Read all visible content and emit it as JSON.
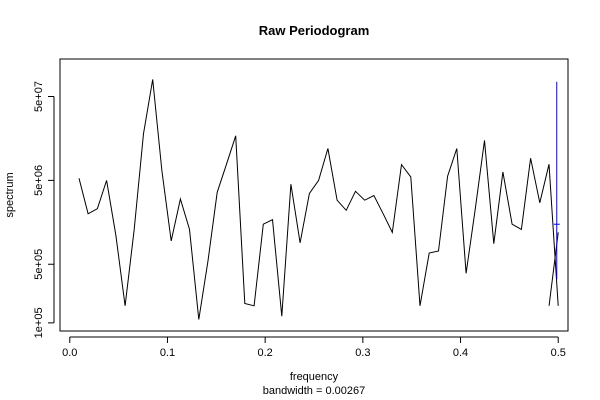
{
  "chart_data": {
    "type": "line",
    "title": "Raw Periodogram",
    "xlabel": "frequency",
    "sub": "bandwidth = 0.00267",
    "ylabel": "spectrum",
    "y_scale": "log",
    "xlim": [
      -0.01,
      0.51
    ],
    "ylim": [
      80000,
      140000000
    ],
    "x_ticks": [
      0.0,
      0.1,
      0.2,
      0.3,
      0.4,
      0.5
    ],
    "x_tick_labels": [
      "0.0",
      "0.1",
      "0.2",
      "0.3",
      "0.4",
      "0.5"
    ],
    "y_ticks": [
      100000,
      500000,
      5000000,
      50000000
    ],
    "y_tick_labels": [
      "1e+05",
      "5e+05",
      "5e+06",
      "5e+07"
    ],
    "series": [
      {
        "color": "#000000",
        "x": [
          0.0094,
          0.0188,
          0.0283,
          0.0377,
          0.0472,
          0.0566,
          0.066,
          0.0755,
          0.0849,
          0.0943,
          0.1038,
          0.1132,
          0.1226,
          0.1321,
          0.1415,
          0.1509,
          0.1604,
          0.1698,
          0.1792,
          0.1887,
          0.1981,
          0.2075,
          0.217,
          0.2264,
          0.2358,
          0.2453,
          0.2547,
          0.2642,
          0.2736,
          0.283,
          0.2925,
          0.3019,
          0.3113,
          0.3208,
          0.3302,
          0.3396,
          0.3491,
          0.3585,
          0.3679,
          0.3774,
          0.3868,
          0.3962,
          0.4057,
          0.4151,
          0.4245,
          0.434,
          0.4434,
          0.4528,
          0.4623,
          0.4717,
          0.4811,
          0.4906,
          0.5
        ],
        "values": [
          5300000,
          2000000,
          2300000,
          5000000,
          1100000,
          160000,
          1300000,
          18000000,
          80000000,
          6500000,
          950000,
          3000000,
          1300000,
          110000,
          550000,
          3600000,
          7800000,
          17000000,
          170000,
          160000,
          1500000,
          1700000,
          120000,
          4500000,
          900000,
          3500000,
          5000000,
          12000000,
          2900000,
          2200000,
          3700000,
          2900000,
          3300000,
          2000000,
          1200000,
          7700000,
          5500000,
          160000,
          680000,
          720000,
          5600000,
          12000000,
          390000,
          2300000,
          15000000,
          880000,
          6300000,
          1500000,
          1300000,
          9200000,
          2700000,
          7800000,
          160000
        ]
      },
      {
        "color": "#0000ff",
        "type": "error-bar",
        "x": 0.4985,
        "center": 1500000,
        "low": 330000,
        "high": 75000000
      }
    ],
    "extra_segment": {
      "color": "#000000",
      "x": [
        0.4906,
        0.5
      ],
      "values": [
        160000,
        1200000
      ]
    }
  }
}
